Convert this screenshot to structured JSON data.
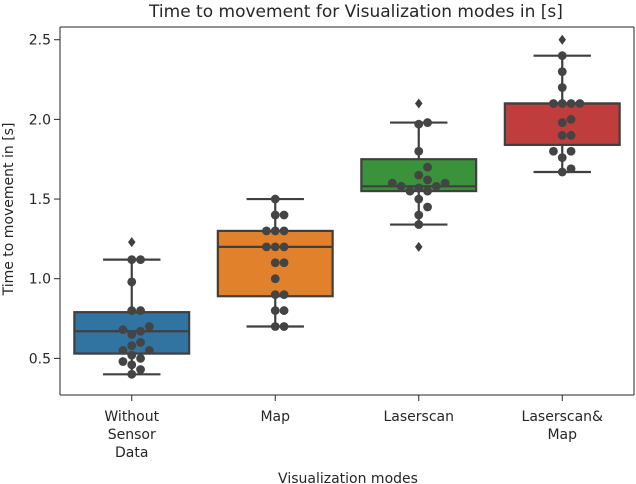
{
  "chart_data": {
    "type": "box",
    "title": "Time to movement for Visualization modes in [s]",
    "xlabel": "Visualization modes",
    "ylabel": "Time to movement in [s]",
    "ylim": [
      0.27,
      2.58
    ],
    "yticks": [
      0.5,
      1.0,
      1.5,
      2.0,
      2.5
    ],
    "ytick_labels": [
      "0.5",
      "1.0",
      "1.5",
      "2.0",
      "2.5"
    ],
    "grid": false,
    "categories": [
      {
        "label_lines": [
          "Without",
          "Sensor",
          "Data"
        ],
        "color": "#3274a1"
      },
      {
        "label_lines": [
          "Map"
        ],
        "color": "#e1812c"
      },
      {
        "label_lines": [
          "Laserscan"
        ],
        "color": "#3a923a"
      },
      {
        "label_lines": [
          "Laserscan&",
          "Map"
        ],
        "color": "#c03d3e"
      }
    ],
    "boxes": [
      {
        "q1": 0.53,
        "median": 0.67,
        "q3": 0.79,
        "whisker_low": 0.4,
        "whisker_high": 1.12,
        "outliers": [
          1.23
        ]
      },
      {
        "q1": 0.89,
        "median": 1.2,
        "q3": 1.3,
        "whisker_low": 0.7,
        "whisker_high": 1.5,
        "outliers": []
      },
      {
        "q1": 1.55,
        "median": 1.58,
        "q3": 1.75,
        "whisker_low": 1.34,
        "whisker_high": 1.98,
        "outliers": [
          1.2,
          2.1
        ]
      },
      {
        "q1": 1.84,
        "median": 2.1,
        "q3": 2.1,
        "whisker_low": 1.67,
        "whisker_high": 2.4,
        "outliers": [
          2.5
        ]
      }
    ],
    "points": [
      [
        0.4,
        0.43,
        0.46,
        0.48,
        0.5,
        0.52,
        0.55,
        0.55,
        0.58,
        0.6,
        0.65,
        0.67,
        0.68,
        0.7,
        0.8,
        0.8,
        0.98,
        1.12,
        1.12
      ],
      [
        0.7,
        0.7,
        0.8,
        0.8,
        0.9,
        0.9,
        1.0,
        1.1,
        1.1,
        1.2,
        1.2,
        1.2,
        1.3,
        1.3,
        1.3,
        1.4,
        1.4,
        1.5
      ],
      [
        1.34,
        1.4,
        1.45,
        1.5,
        1.55,
        1.55,
        1.57,
        1.58,
        1.58,
        1.6,
        1.6,
        1.62,
        1.65,
        1.7,
        1.8,
        1.97,
        1.98
      ],
      [
        1.67,
        1.69,
        1.76,
        1.8,
        1.8,
        1.9,
        1.9,
        1.98,
        2.0,
        2.1,
        2.1,
        2.1,
        2.1,
        2.2,
        2.3,
        2.4
      ]
    ],
    "point_color": "#444444",
    "box_edge_color": "#3f3f3f"
  }
}
